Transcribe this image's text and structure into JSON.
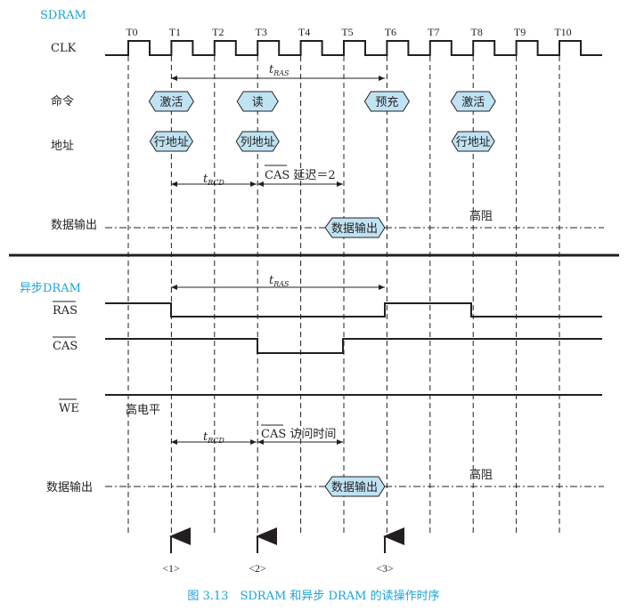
{
  "colors": {
    "accent": "#1aa3d9",
    "box_fill": "#bfe3f3",
    "line": "#231f20"
  },
  "sections": {
    "sdram_title": "SDRAM",
    "async_title": "异步DRAM"
  },
  "clock": {
    "label": "CLK",
    "ticks": [
      "T0",
      "T1",
      "T2",
      "T3",
      "T4",
      "T5",
      "T6",
      "T7",
      "T8",
      "T9",
      "T10"
    ]
  },
  "sdram": {
    "cmd_label": "命令",
    "addr_label": "地址",
    "data_label": "数据输出",
    "commands": [
      {
        "text": "激活",
        "at": "T1"
      },
      {
        "text": "读",
        "at": "T3"
      },
      {
        "text": "预充",
        "at": "T6"
      },
      {
        "text": "激活",
        "at": "T8"
      }
    ],
    "addresses": [
      {
        "text": "行地址",
        "at": "T1"
      },
      {
        "text": "列地址",
        "at": "T3"
      },
      {
        "text": "行地址",
        "at": "T8"
      }
    ],
    "tras": {
      "t": "t",
      "sub": "RAS"
    },
    "trcd": {
      "t": "t",
      "sub": "RCD"
    },
    "cas_over": "CAS",
    "cas_rest": " 延迟＝2",
    "data_box": "数据输出",
    "high_z": "高阻"
  },
  "async": {
    "ras_label": "RAS",
    "cas_label": "CAS",
    "we_label": "WE",
    "we_level": "高电平",
    "data_label": "数据输出",
    "tras": {
      "t": "t",
      "sub": "RAS"
    },
    "trcd": {
      "t": "t",
      "sub": "RCD"
    },
    "cas_over": "CAS",
    "cas_rest": " 访问时间",
    "data_box": "数据输出",
    "high_z": "高阻"
  },
  "markers": [
    "<1>",
    "<2>",
    "<3>"
  ],
  "caption": "图 3.13　SDRAM 和异步 DRAM 的读操作时序"
}
